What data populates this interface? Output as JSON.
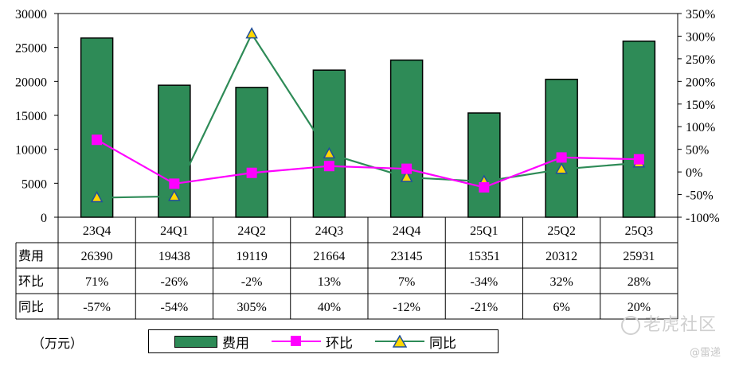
{
  "chart_data": {
    "type": "bar",
    "categories": [
      "23Q4",
      "24Q1",
      "24Q2",
      "24Q3",
      "24Q4",
      "25Q1",
      "25Q2",
      "25Q3"
    ],
    "series": [
      {
        "name": "费用",
        "type": "bar",
        "axis": "left",
        "color": "#2e8b57",
        "values": [
          26390,
          19438,
          19119,
          21664,
          23145,
          15351,
          20312,
          25931
        ]
      },
      {
        "name": "环比",
        "type": "line",
        "axis": "right",
        "color": "#ff00ff",
        "marker": "square",
        "values": [
          71,
          -26,
          -2,
          13,
          7,
          -34,
          32,
          28
        ]
      },
      {
        "name": "同比",
        "type": "line",
        "axis": "right",
        "color": "#2e8b57",
        "marker": "triangle",
        "values": [
          -57,
          -54,
          305,
          40,
          -12,
          -21,
          6,
          20
        ]
      }
    ],
    "left_axis": {
      "ylim": [
        0,
        30000
      ],
      "ticks": [
        "0",
        "5000",
        "10000",
        "15000",
        "20000",
        "25000",
        "30000"
      ]
    },
    "right_axis": {
      "ylim": [
        -100,
        350
      ],
      "ticks": [
        "-100%",
        "-50%",
        "0%",
        "50%",
        "100%",
        "150%",
        "200%",
        "250%",
        "300%",
        "350%"
      ]
    },
    "table": {
      "row_labels": [
        "费用",
        "环比",
        "同比"
      ],
      "rows": [
        [
          "26390",
          "19438",
          "19119",
          "21664",
          "23145",
          "15351",
          "20312",
          "25931"
        ],
        [
          "71%",
          "-26%",
          "-2%",
          "13%",
          "7%",
          "-34%",
          "32%",
          "28%"
        ],
        [
          "-57%",
          "-54%",
          "305%",
          "40%",
          "-12%",
          "-21%",
          "6%",
          "20%"
        ]
      ]
    },
    "unit_label": "（万元）",
    "legend": {
      "placement": "bottom",
      "items": [
        "费用",
        "环比",
        "同比"
      ]
    }
  },
  "watermark": {
    "brand": "老虎社区",
    "handle": "@雷递"
  }
}
